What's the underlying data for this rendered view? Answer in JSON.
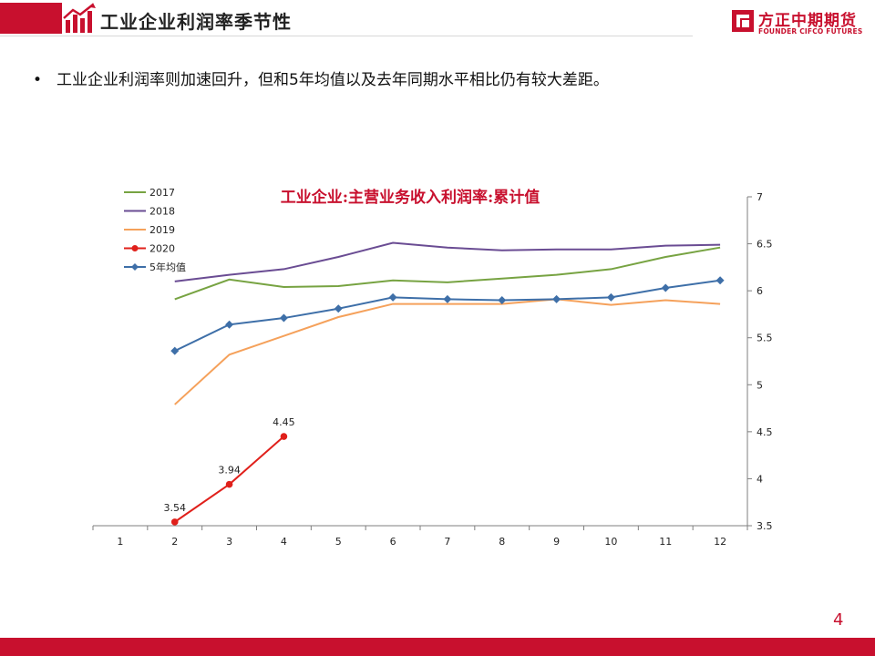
{
  "header": {
    "title": "工业企业利润率季节性",
    "brand_cn": "方正中期期货",
    "brand_en": "FOUNDER CIFCO FUTURES"
  },
  "bullet": "工业企业利润率则加速回升，但和5年均值以及去年同期水平相比仍有较大差距。",
  "page_number": "4",
  "colors": {
    "brand_red": "#c8102e",
    "s2017": "#77a342",
    "s2018": "#6a4c93",
    "s2019": "#f5a15b",
    "s2020": "#e0201b",
    "s5yr": "#3e6fa8"
  },
  "chart_data": {
    "type": "line",
    "title": "工业企业:主营业务收入利润率:累计值",
    "categories": [
      "1",
      "2",
      "3",
      "4",
      "5",
      "6",
      "7",
      "8",
      "9",
      "10",
      "11",
      "12"
    ],
    "ylim": [
      3.5,
      7
    ],
    "yticks": [
      "3.5",
      "4",
      "4.5",
      "5",
      "5.5",
      "6",
      "6.5",
      "7"
    ],
    "legend_position": "top-left",
    "grid": false,
    "series": [
      {
        "name": "2017",
        "color": "#77a342",
        "marker": "none",
        "values": [
          null,
          5.91,
          6.12,
          6.04,
          6.05,
          6.11,
          6.09,
          6.13,
          6.17,
          6.23,
          6.36,
          6.46
        ]
      },
      {
        "name": "2018",
        "color": "#6a4c93",
        "marker": "none",
        "values": [
          null,
          6.1,
          6.17,
          6.23,
          6.36,
          6.51,
          6.46,
          6.43,
          6.44,
          6.44,
          6.48,
          6.49
        ]
      },
      {
        "name": "2019",
        "color": "#f5a15b",
        "marker": "none",
        "values": [
          null,
          4.79,
          5.32,
          5.52,
          5.72,
          5.86,
          5.86,
          5.86,
          5.91,
          5.85,
          5.9,
          5.86
        ]
      },
      {
        "name": "2020",
        "color": "#e0201b",
        "marker": "circle",
        "values": [
          null,
          3.54,
          3.94,
          4.45,
          null,
          null,
          null,
          null,
          null,
          null,
          null,
          null
        ],
        "labels": [
          "",
          "3.54",
          "3.94",
          "4.45",
          "",
          "",
          "",
          "",
          "",
          "",
          "",
          ""
        ]
      },
      {
        "name": "5年均值",
        "color": "#3e6fa8",
        "marker": "diamond",
        "values": [
          null,
          5.36,
          5.64,
          5.71,
          5.81,
          5.93,
          5.91,
          5.9,
          5.91,
          5.93,
          6.03,
          6.11
        ]
      }
    ]
  }
}
